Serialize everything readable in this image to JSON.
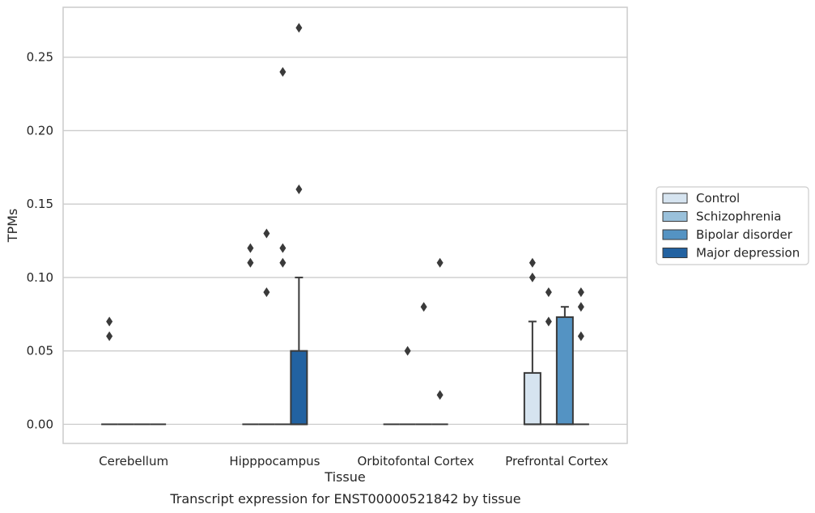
{
  "chart_data": {
    "type": "box",
    "title": "",
    "caption": "Transcript expression for ENST00000521842 by tissue",
    "xlabel": "Tissue",
    "ylabel": "TPMs",
    "ylim": [
      -0.013,
      0.284
    ],
    "yticks": [
      "0.00",
      "0.05",
      "0.10",
      "0.15",
      "0.20",
      "0.25"
    ],
    "grid": true,
    "legend_position": "right",
    "categories": [
      "Cerebellum",
      "Hipppocampus",
      "Orbitofontal Cortex",
      "Prefrontal Cortex"
    ],
    "series": [
      {
        "name": "Control",
        "color": "#d6e4f0"
      },
      {
        "name": "Schizophrenia",
        "color": "#9ac1db"
      },
      {
        "name": "Bipolar disorder",
        "color": "#5493c3"
      },
      {
        "name": "Major depression",
        "color": "#2262a1"
      }
    ],
    "boxes": [
      {
        "category": "Cerebellum",
        "series": "Control",
        "q1": 0,
        "median": 0,
        "q3": 0,
        "whisker_low": 0,
        "whisker_high": 0,
        "outliers": [
          0.07,
          0.06
        ]
      },
      {
        "category": "Cerebellum",
        "series": "Schizophrenia",
        "q1": 0,
        "median": 0,
        "q3": 0,
        "whisker_low": 0,
        "whisker_high": 0,
        "outliers": []
      },
      {
        "category": "Cerebellum",
        "series": "Bipolar disorder",
        "q1": 0,
        "median": 0,
        "q3": 0,
        "whisker_low": 0,
        "whisker_high": 0,
        "outliers": []
      },
      {
        "category": "Cerebellum",
        "series": "Major depression",
        "q1": 0,
        "median": 0,
        "q3": 0,
        "whisker_low": 0,
        "whisker_high": 0,
        "outliers": []
      },
      {
        "category": "Hipppocampus",
        "series": "Control",
        "q1": 0,
        "median": 0,
        "q3": 0,
        "whisker_low": 0,
        "whisker_high": 0,
        "outliers": [
          0.12,
          0.11
        ]
      },
      {
        "category": "Hipppocampus",
        "series": "Schizophrenia",
        "q1": 0,
        "median": 0,
        "q3": 0,
        "whisker_low": 0,
        "whisker_high": 0,
        "outliers": [
          0.13,
          0.09
        ]
      },
      {
        "category": "Hipppocampus",
        "series": "Bipolar disorder",
        "q1": 0,
        "median": 0,
        "q3": 0,
        "whisker_low": 0,
        "whisker_high": 0,
        "outliers": [
          0.24,
          0.12,
          0.11
        ]
      },
      {
        "category": "Hipppocampus",
        "series": "Major depression",
        "q1": 0,
        "median": 0,
        "q3": 0.05,
        "whisker_low": 0,
        "whisker_high": 0.1,
        "outliers": [
          0.27,
          0.16
        ]
      },
      {
        "category": "Orbitofontal Cortex",
        "series": "Control",
        "q1": 0,
        "median": 0,
        "q3": 0,
        "whisker_low": 0,
        "whisker_high": 0,
        "outliers": []
      },
      {
        "category": "Orbitofontal Cortex",
        "series": "Schizophrenia",
        "q1": 0,
        "median": 0,
        "q3": 0,
        "whisker_low": 0,
        "whisker_high": 0,
        "outliers": [
          0.05
        ]
      },
      {
        "category": "Orbitofontal Cortex",
        "series": "Bipolar disorder",
        "q1": 0,
        "median": 0,
        "q3": 0,
        "whisker_low": 0,
        "whisker_high": 0,
        "outliers": [
          0.08
        ]
      },
      {
        "category": "Orbitofontal Cortex",
        "series": "Major depression",
        "q1": 0,
        "median": 0,
        "q3": 0,
        "whisker_low": 0,
        "whisker_high": 0,
        "outliers": [
          0.11,
          0.02
        ]
      },
      {
        "category": "Prefrontal Cortex",
        "series": "Control",
        "q1": 0,
        "median": 0,
        "q3": 0.035,
        "whisker_low": 0,
        "whisker_high": 0.07,
        "outliers": [
          0.11,
          0.1
        ]
      },
      {
        "category": "Prefrontal Cortex",
        "series": "Schizophrenia",
        "q1": 0,
        "median": 0,
        "q3": 0,
        "whisker_low": 0,
        "whisker_high": 0,
        "outliers": [
          0.09,
          0.07
        ]
      },
      {
        "category": "Prefrontal Cortex",
        "series": "Bipolar disorder",
        "q1": 0,
        "median": 0,
        "q3": 0.073,
        "whisker_low": 0,
        "whisker_high": 0.08,
        "outliers": []
      },
      {
        "category": "Prefrontal Cortex",
        "series": "Major depression",
        "q1": 0,
        "median": 0,
        "q3": 0,
        "whisker_low": 0,
        "whisker_high": 0,
        "outliers": [
          0.09,
          0.08,
          0.06
        ]
      }
    ]
  },
  "colors": {
    "grid": "#cccccc",
    "frame": "#cccccc",
    "box_edge": "#3a3a3a",
    "outlier": "#3a3a3a",
    "text": "#262626"
  }
}
